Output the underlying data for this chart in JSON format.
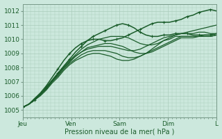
{
  "xlabel": "Pression niveau de la mer( hPa )",
  "ylim": [
    1004.5,
    1012.5
  ],
  "yticks": [
    1005,
    1006,
    1007,
    1008,
    1009,
    1010,
    1011,
    1012
  ],
  "xtick_labels": [
    "Jeu",
    "Ven",
    "Sam",
    "Dim",
    "L"
  ],
  "xtick_positions": [
    0,
    24,
    48,
    72,
    96
  ],
  "bg_color": "#cce8dd",
  "grid_color": "#aaccbb",
  "line_color": "#1a5c2a",
  "total_hours": 96,
  "lines": [
    [
      1005.2,
      1005.4,
      1005.7,
      1006.1,
      1006.6,
      1007.1,
      1007.6,
      1008.1,
      1008.6,
      1009.1,
      1009.5,
      1009.9,
      1010.2,
      1010.4,
      1010.6,
      1010.8,
      1011.0,
      1011.1,
      1011.0,
      1010.8,
      1010.5,
      1010.3,
      1010.2,
      1010.2,
      1010.3,
      1010.3,
      1010.4,
      1010.4,
      1010.4,
      1010.3,
      1010.3,
      1010.3,
      1010.3,
      1010.4
    ],
    [
      1005.2,
      1005.4,
      1005.7,
      1006.1,
      1006.6,
      1007.1,
      1007.6,
      1008.1,
      1008.5,
      1008.9,
      1009.3,
      1009.6,
      1009.8,
      1010.0,
      1010.1,
      1010.2,
      1010.2,
      1010.2,
      1010.1,
      1009.9,
      1009.7,
      1009.6,
      1009.6,
      1009.7,
      1009.9,
      1010.0,
      1010.2,
      1010.2,
      1010.2,
      1010.2,
      1010.2,
      1010.3,
      1010.3,
      1010.4
    ],
    [
      1005.2,
      1005.4,
      1005.7,
      1006.1,
      1006.5,
      1007.0,
      1007.5,
      1008.0,
      1008.4,
      1008.8,
      1009.1,
      1009.4,
      1009.5,
      1009.6,
      1009.7,
      1009.7,
      1009.6,
      1009.5,
      1009.3,
      1009.1,
      1009.0,
      1009.0,
      1009.1,
      1009.3,
      1009.5,
      1009.7,
      1009.9,
      1010.1,
      1010.1,
      1010.1,
      1010.2,
      1010.2,
      1010.2,
      1010.3
    ],
    [
      1005.2,
      1005.4,
      1005.7,
      1006.1,
      1006.5,
      1007.0,
      1007.4,
      1007.9,
      1008.3,
      1008.6,
      1008.9,
      1009.1,
      1009.2,
      1009.2,
      1009.2,
      1009.1,
      1009.0,
      1008.8,
      1008.7,
      1008.7,
      1008.8,
      1009.0,
      1009.2,
      1009.4,
      1009.6,
      1009.8,
      1010.0,
      1010.2,
      1010.2,
      1010.2,
      1010.2,
      1010.2,
      1010.2,
      1010.3
    ],
    [
      1005.2,
      1005.4,
      1005.7,
      1006.0,
      1006.4,
      1006.9,
      1007.3,
      1007.8,
      1008.2,
      1008.5,
      1008.7,
      1008.9,
      1009.0,
      1009.0,
      1008.9,
      1008.8,
      1008.6,
      1008.5,
      1008.5,
      1008.6,
      1008.8,
      1009.0,
      1009.3,
      1009.6,
      1009.9,
      1010.1,
      1010.3,
      1010.4,
      1010.4,
      1010.4,
      1010.5,
      1010.5,
      1010.4,
      1010.4
    ],
    [
      1005.2,
      1005.4,
      1005.7,
      1006.1,
      1006.5,
      1007.0,
      1007.5,
      1008.0,
      1008.4,
      1008.8,
      1009.1,
      1009.3,
      1009.4,
      1009.5,
      1009.5,
      1009.5,
      1009.4,
      1009.3,
      1009.2,
      1009.2,
      1009.3,
      1009.5,
      1009.7,
      1009.9,
      1010.1,
      1010.2,
      1010.3,
      1010.4,
      1010.5,
      1010.6,
      1010.7,
      1010.8,
      1010.9,
      1011.0
    ],
    [
      1005.2,
      1005.4,
      1005.8,
      1006.2,
      1006.7,
      1007.3,
      1007.9,
      1008.5,
      1009.0,
      1009.4,
      1009.7,
      1009.9,
      1010.0,
      1010.0,
      1009.9,
      1009.9,
      1010.0,
      1010.1,
      1010.3,
      1010.5,
      1010.7,
      1010.9,
      1011.1,
      1011.2,
      1011.2,
      1011.2,
      1011.3,
      1011.4,
      1011.6,
      1011.7,
      1011.9,
      1012.0,
      1012.1,
      1012.0
    ]
  ],
  "marker_lines": [
    0,
    6
  ],
  "figsize": [
    3.2,
    2.0
  ],
  "dpi": 100
}
